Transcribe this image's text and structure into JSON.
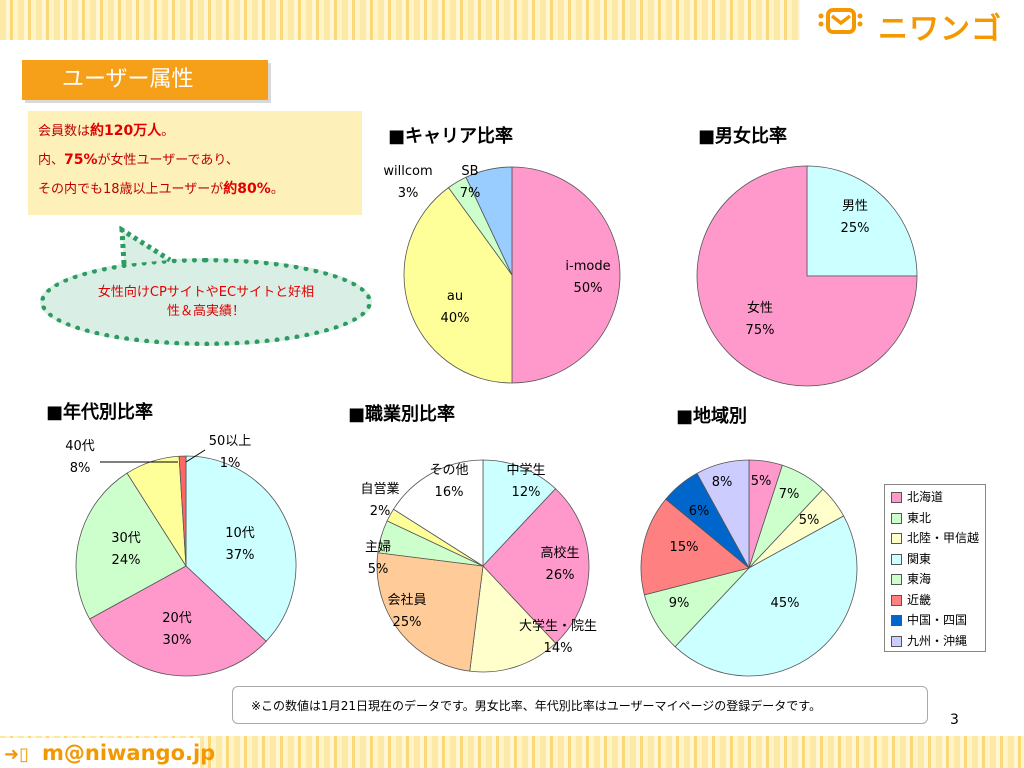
{
  "header": {
    "logo_text": "ニワンゴ",
    "title": "ユーザー属性"
  },
  "info": {
    "line1_pre": "会員数は",
    "line1_em": "約120万人",
    "line1_post": "。",
    "line2_pre": "内、",
    "line2_em": "75%",
    "line2_post": "が女性ユーザーであり、",
    "line3_pre": "その内でも18歳以上ユーザーが",
    "line3_em": "約80%",
    "line3_post": "。"
  },
  "bubble": {
    "text": "女性向けCPサイトやECサイトと好相性＆高実績！"
  },
  "sections": {
    "carrier": "■キャリア比率",
    "gender": "■男女比率",
    "age": "■年代別比率",
    "occupation": "■職業別比率",
    "region": "■地域別"
  },
  "chart_data": [
    {
      "type": "pie",
      "title": "■キャリア比率",
      "slices": [
        {
          "label": "i-mode",
          "value": 50,
          "color": "#ff99cc"
        },
        {
          "label": "au",
          "value": 40,
          "color": "#ffff99"
        },
        {
          "label": "willcom",
          "value": 3,
          "color": "#ccffcc"
        },
        {
          "label": "SB",
          "value": 7,
          "color": "#99ccff"
        }
      ]
    },
    {
      "type": "pie",
      "title": "■男女比率",
      "slices": [
        {
          "label": "男性",
          "value": 25,
          "color": "#ccffff"
        },
        {
          "label": "女性",
          "value": 75,
          "color": "#ff99cc"
        }
      ]
    },
    {
      "type": "pie",
      "title": "■年代別比率",
      "slices": [
        {
          "label": "10代",
          "value": 37,
          "color": "#ccffff"
        },
        {
          "label": "20代",
          "value": 30,
          "color": "#ff99cc"
        },
        {
          "label": "30代",
          "value": 24,
          "color": "#ccffcc"
        },
        {
          "label": "40代",
          "value": 8,
          "color": "#ffff99"
        },
        {
          "label": "50以上",
          "value": 1,
          "color": "#ff6666"
        }
      ]
    },
    {
      "type": "pie",
      "title": "■職業別比率",
      "slices": [
        {
          "label": "中学生",
          "value": 12,
          "color": "#ccffff"
        },
        {
          "label": "高校生",
          "value": 26,
          "color": "#ff99cc"
        },
        {
          "label": "大学生・院生",
          "value": 14,
          "color": "#ffffcc"
        },
        {
          "label": "会社員",
          "value": 25,
          "color": "#ffcc99"
        },
        {
          "label": "主婦",
          "value": 5,
          "color": "#ccffcc"
        },
        {
          "label": "自営業",
          "value": 2,
          "color": "#ffff99"
        },
        {
          "label": "その他",
          "value": 16,
          "color": "#ffffff"
        }
      ]
    },
    {
      "type": "pie",
      "title": "■地域別",
      "legend": "right",
      "slices": [
        {
          "label": "北海道",
          "value": 5,
          "color": "#ff99cc"
        },
        {
          "label": "東北",
          "value": 7,
          "color": "#ccffcc"
        },
        {
          "label": "北陸・甲信越",
          "value": 5,
          "color": "#ffffcc"
        },
        {
          "label": "関東",
          "value": 45,
          "color": "#ccffff"
        },
        {
          "label": "東海",
          "value": 9,
          "color": "#ccffcc"
        },
        {
          "label": "近畿",
          "value": 15,
          "color": "#ff8080"
        },
        {
          "label": "中国・四国",
          "value": 6,
          "color": "#0066cc"
        },
        {
          "label": "九州・沖縄",
          "value": 8,
          "color": "#ccccff"
        }
      ]
    }
  ],
  "note": "※この数値は1月21日現在のデータです。男女比率、年代別比率はユーザーマイページの登録データです。",
  "page_number": "3",
  "footer": {
    "email": "m@niwango.jp"
  }
}
